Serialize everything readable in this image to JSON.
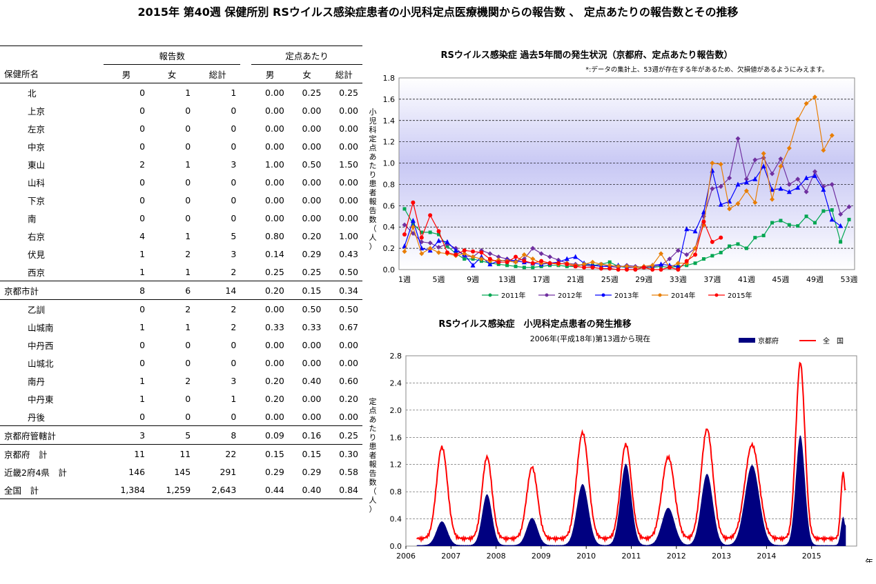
{
  "page": {
    "title": "2015年 第40週 保健所別 RSウイルス感染症患者の小児科定点医療機関からの報告数 、 定点あたりの報告数とその推移"
  },
  "table": {
    "group_headers": {
      "reports": "報告数",
      "per_sentinel": "定点あたり"
    },
    "columns": {
      "name": "保健所名",
      "male": "男",
      "female": "女",
      "total": "総計"
    },
    "rows": [
      {
        "name": "北",
        "m": "0",
        "f": "1",
        "t": "1",
        "pm": "0.00",
        "pf": "0.25",
        "pt": "0.25",
        "kind": "sub"
      },
      {
        "name": "上京",
        "m": "0",
        "f": "0",
        "t": "0",
        "pm": "0.00",
        "pf": "0.00",
        "pt": "0.00",
        "kind": "sub"
      },
      {
        "name": "左京",
        "m": "0",
        "f": "0",
        "t": "0",
        "pm": "0.00",
        "pf": "0.00",
        "pt": "0.00",
        "kind": "sub"
      },
      {
        "name": "中京",
        "m": "0",
        "f": "0",
        "t": "0",
        "pm": "0.00",
        "pf": "0.00",
        "pt": "0.00",
        "kind": "sub"
      },
      {
        "name": "東山",
        "m": "2",
        "f": "1",
        "t": "3",
        "pm": "1.00",
        "pf": "0.50",
        "pt": "1.50",
        "kind": "sub"
      },
      {
        "name": "山科",
        "m": "0",
        "f": "0",
        "t": "0",
        "pm": "0.00",
        "pf": "0.00",
        "pt": "0.00",
        "kind": "sub"
      },
      {
        "name": "下京",
        "m": "0",
        "f": "0",
        "t": "0",
        "pm": "0.00",
        "pf": "0.00",
        "pt": "0.00",
        "kind": "sub"
      },
      {
        "name": "南",
        "m": "0",
        "f": "0",
        "t": "0",
        "pm": "0.00",
        "pf": "0.00",
        "pt": "0.00",
        "kind": "sub"
      },
      {
        "name": "右京",
        "m": "4",
        "f": "1",
        "t": "5",
        "pm": "0.80",
        "pf": "0.20",
        "pt": "1.00",
        "kind": "sub"
      },
      {
        "name": "伏見",
        "m": "1",
        "f": "2",
        "t": "3",
        "pm": "0.14",
        "pf": "0.29",
        "pt": "0.43",
        "kind": "sub"
      },
      {
        "name": "西京",
        "m": "1",
        "f": "1",
        "t": "2",
        "pm": "0.25",
        "pf": "0.25",
        "pt": "0.50",
        "kind": "sub"
      },
      {
        "name": "京都市計",
        "m": "8",
        "f": "6",
        "t": "14",
        "pm": "0.20",
        "pf": "0.15",
        "pt": "0.34",
        "kind": "subtotal"
      },
      {
        "name": "乙訓",
        "m": "0",
        "f": "2",
        "t": "2",
        "pm": "0.00",
        "pf": "0.50",
        "pt": "0.50",
        "kind": "sub"
      },
      {
        "name": "山城南",
        "m": "1",
        "f": "1",
        "t": "2",
        "pm": "0.33",
        "pf": "0.33",
        "pt": "0.67",
        "kind": "sub"
      },
      {
        "name": "中丹西",
        "m": "0",
        "f": "0",
        "t": "0",
        "pm": "0.00",
        "pf": "0.00",
        "pt": "0.00",
        "kind": "sub"
      },
      {
        "name": "山城北",
        "m": "0",
        "f": "0",
        "t": "0",
        "pm": "0.00",
        "pf": "0.00",
        "pt": "0.00",
        "kind": "sub"
      },
      {
        "name": "南丹",
        "m": "1",
        "f": "2",
        "t": "3",
        "pm": "0.20",
        "pf": "0.40",
        "pt": "0.60",
        "kind": "sub"
      },
      {
        "name": "中丹東",
        "m": "1",
        "f": "0",
        "t": "1",
        "pm": "0.20",
        "pf": "0.00",
        "pt": "0.20",
        "kind": "sub"
      },
      {
        "name": "丹後",
        "m": "0",
        "f": "0",
        "t": "0",
        "pm": "0.00",
        "pf": "0.00",
        "pt": "0.00",
        "kind": "sub"
      },
      {
        "name": "京都府管轄計",
        "m": "3",
        "f": "5",
        "t": "8",
        "pm": "0.09",
        "pf": "0.16",
        "pt": "0.25",
        "kind": "subtotal"
      },
      {
        "name": "京都府　計",
        "m": "11",
        "f": "11",
        "t": "22",
        "pm": "0.15",
        "pf": "0.15",
        "pt": "0.30",
        "kind": "total"
      },
      {
        "name": "近畿2府4県　計",
        "m": "146",
        "f": "145",
        "t": "291",
        "pm": "0.29",
        "pf": "0.29",
        "pt": "0.58",
        "kind": "total"
      },
      {
        "name": "全国　計",
        "m": "1,384",
        "f": "1,259",
        "t": "2,643",
        "pm": "0.44",
        "pf": "0.40",
        "pt": "0.84",
        "kind": "last"
      }
    ]
  },
  "chart_data": [
    {
      "type": "line",
      "title": "RSウイルス感染症 過去5年間の発生状況（京都府、定点あたり報告数）",
      "note": "*:データの集計上、53週が存在する年があるため、欠損値があるようにみえます。",
      "ylabel": "小児科定点あたり患者報告数（人）",
      "ylim": [
        0,
        1.8
      ],
      "yticks": [
        "0.0",
        "0.2",
        "0.4",
        "0.6",
        "0.8",
        "1.0",
        "1.2",
        "1.4",
        "1.6",
        "1.8"
      ],
      "xticks": [
        {
          "w": 1,
          "label": "1週"
        },
        {
          "w": 5,
          "label": "5週"
        },
        {
          "w": 9,
          "label": "9週"
        },
        {
          "w": 13,
          "label": "13週"
        },
        {
          "w": 17,
          "label": "17週"
        },
        {
          "w": 21,
          "label": "21週"
        },
        {
          "w": 25,
          "label": "25週"
        },
        {
          "w": 29,
          "label": "29週"
        },
        {
          "w": 33,
          "label": "33週"
        },
        {
          "w": 37,
          "label": "37週"
        },
        {
          "w": 41,
          "label": "41週"
        },
        {
          "w": 45,
          "label": "45週"
        },
        {
          "w": 49,
          "label": "49週"
        },
        {
          "w": 53,
          "label": "53週"
        }
      ],
      "series": [
        {
          "name": "2011年",
          "color": "#00a651",
          "marker": "square",
          "values": [
            0.57,
            0.43,
            0.35,
            0.35,
            0.33,
            0.22,
            0.15,
            0.1,
            0.1,
            0.08,
            0.06,
            0.05,
            0.04,
            0.03,
            0.02,
            0.02,
            0.03,
            0.04,
            0.04,
            0.03,
            0.03,
            0.05,
            0.04,
            0.05,
            0.07,
            0.03,
            0.02,
            0.02,
            0.02,
            0.02,
            0.03,
            0.02,
            0.03,
            0.04,
            0.06,
            0.1,
            0.13,
            0.16,
            0.22,
            0.24,
            0.2,
            0.3,
            0.32,
            0.44,
            0.46,
            0.42,
            0.41,
            0.5,
            0.44,
            0.55,
            0.56,
            0.26,
            0.47
          ]
        },
        {
          "name": "2012年",
          "color": "#7030a0",
          "marker": "diamond",
          "values": [
            0.42,
            0.34,
            0.26,
            0.25,
            0.21,
            0.24,
            0.2,
            0.13,
            0.12,
            0.18,
            0.15,
            0.12,
            0.1,
            0.08,
            0.1,
            0.2,
            0.15,
            0.12,
            0.09,
            0.06,
            0.05,
            0.04,
            0.03,
            0.05,
            0.03,
            0.02,
            0.04,
            0.03,
            0.02,
            0.03,
            0.04,
            0.1,
            0.18,
            0.14,
            0.2,
            0.5,
            0.76,
            0.78,
            0.86,
            1.23,
            0.85,
            1.03,
            1.05,
            0.9,
            1.04,
            0.8,
            0.85,
            0.73,
            0.92,
            0.78,
            0.8,
            0.52,
            0.59
          ]
        },
        {
          "name": "2013年",
          "color": "#0000ff",
          "marker": "triangle",
          "values": [
            0.22,
            0.46,
            0.2,
            0.18,
            0.27,
            0.26,
            0.18,
            0.14,
            0.04,
            0.12,
            0.05,
            0.08,
            0.09,
            0.08,
            0.07,
            0.06,
            0.05,
            0.06,
            0.07,
            0.1,
            0.12,
            0.06,
            0.04,
            0.03,
            0.03,
            0.04,
            0.02,
            0.02,
            0.03,
            0.04,
            0.05,
            0.04,
            0.03,
            0.38,
            0.36,
            0.54,
            0.93,
            0.61,
            0.64,
            0.8,
            0.82,
            0.85,
            0.97,
            0.75,
            0.76,
            0.73,
            0.77,
            0.86,
            0.88,
            0.75,
            0.47,
            0.41
          ]
        },
        {
          "name": "2014年",
          "color": "#e87e04",
          "marker": "diamond",
          "values": [
            0.17,
            0.4,
            0.15,
            0.2,
            0.16,
            0.15,
            0.13,
            0.15,
            0.12,
            0.1,
            0.08,
            0.09,
            0.08,
            0.07,
            0.14,
            0.1,
            0.06,
            0.06,
            0.05,
            0.06,
            0.04,
            0.05,
            0.07,
            0.05,
            0.04,
            0.03,
            0.03,
            0.02,
            0.03,
            0.04,
            0.15,
            0.02,
            0.06,
            0.06,
            0.2,
            0.42,
            1.0,
            0.99,
            0.57,
            0.62,
            0.74,
            0.63,
            1.09,
            0.66,
            0.97,
            1.14,
            1.41,
            1.56,
            1.62,
            1.12,
            1.26
          ]
        },
        {
          "name": "2015年",
          "color": "#ff0000",
          "marker": "circle",
          "values": [
            0.33,
            0.63,
            0.3,
            0.51,
            0.36,
            0.16,
            0.14,
            0.18,
            0.17,
            0.16,
            0.1,
            0.07,
            0.07,
            0.12,
            0.08,
            0.06,
            0.08,
            0.06,
            0.06,
            0.05,
            0.03,
            0.02,
            0.02,
            0.01,
            0.01,
            0.0,
            0.0,
            0.0,
            0.02,
            0.0,
            0.0,
            0.02,
            0.0,
            0.08,
            0.14,
            0.45,
            0.26,
            0.3
          ]
        }
      ]
    },
    {
      "type": "area",
      "title": "RSウイルス感染症　小児科定点患者の発生推移",
      "subtitle": "2006年(平成18年)第13週から現在",
      "ylabel": "定点あたり患者報告数（人）",
      "xlabel": "年",
      "ylim": [
        0,
        2.8
      ],
      "yticks": [
        "0.0",
        "0.4",
        "0.8",
        "1.2",
        "1.6",
        "2.0",
        "2.4",
        "2.8"
      ],
      "years": [
        "2006",
        "2007",
        "2008",
        "2009",
        "2010",
        "2011",
        "2012",
        "2013",
        "2014",
        "2015"
      ],
      "series": [
        {
          "name": "京都府",
          "color": "#000080",
          "style": "area"
        },
        {
          "name": "全　国",
          "color": "#ff0000",
          "style": "line"
        }
      ],
      "seasons": [
        {
          "peak_time": 2006.8,
          "kyoto": 0.35,
          "national": 1.35,
          "width": 0.12
        },
        {
          "peak_time": 2007.8,
          "kyoto": 0.75,
          "national": 1.2,
          "width": 0.11
        },
        {
          "peak_time": 2008.8,
          "kyoto": 0.4,
          "national": 1.05,
          "width": 0.12
        },
        {
          "peak_time": 2009.92,
          "kyoto": 0.9,
          "national": 1.56,
          "width": 0.13
        },
        {
          "peak_time": 2010.88,
          "kyoto": 1.2,
          "national": 1.39,
          "width": 0.12
        },
        {
          "peak_time": 2011.82,
          "kyoto": 0.55,
          "national": 1.2,
          "width": 0.14
        },
        {
          "peak_time": 2012.68,
          "kyoto": 1.05,
          "national": 1.61,
          "width": 0.13
        },
        {
          "peak_time": 2013.68,
          "kyoto": 1.18,
          "national": 1.38,
          "width": 0.16
        },
        {
          "peak_time": 2014.75,
          "kyoto": 1.62,
          "national": 2.59,
          "width": 0.1
        },
        {
          "peak_time": 2015.7,
          "kyoto": 0.42,
          "national": 0.97,
          "width": 0.05
        }
      ],
      "current_end": {
        "kyoto": 0.3,
        "national": 0.84
      }
    }
  ]
}
